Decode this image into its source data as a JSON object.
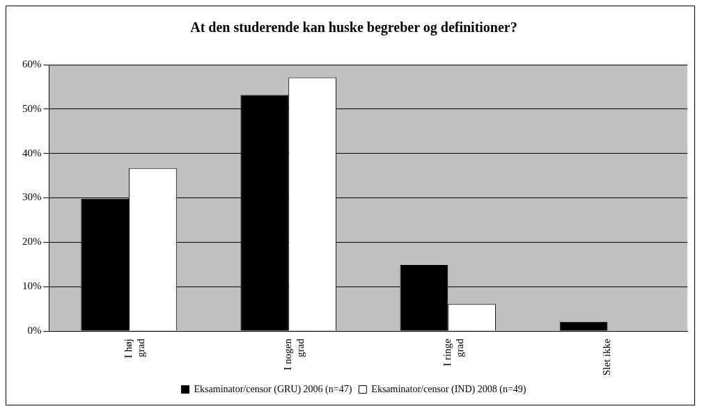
{
  "chart_data": {
    "type": "bar",
    "title": "At den studerende kan huske begreber og definitioner?",
    "categories": [
      "I høj grad",
      "I nogen grad",
      "I ringe grad",
      "Slet ikke"
    ],
    "series": [
      {
        "name": "Eksaminator/censor (GRU) 2006 (n=47)",
        "color": "#000000",
        "values": [
          29.8,
          53.2,
          14.9,
          2.1
        ]
      },
      {
        "name": "Eksaminator/censor (IND) 2008 (n=49)",
        "color": "#ffffff",
        "values": [
          36.7,
          57.1,
          6.1,
          0
        ]
      }
    ],
    "ylim": [
      0,
      60
    ],
    "yticks": [
      {
        "value": 0,
        "label": "0%"
      },
      {
        "value": 10,
        "label": "10%"
      },
      {
        "value": 20,
        "label": "20%"
      },
      {
        "value": 30,
        "label": "30%"
      },
      {
        "value": 40,
        "label": "40%"
      },
      {
        "value": 50,
        "label": "50%"
      },
      {
        "value": 60,
        "label": "60%"
      }
    ],
    "grid": "y",
    "legend": "bottom"
  }
}
